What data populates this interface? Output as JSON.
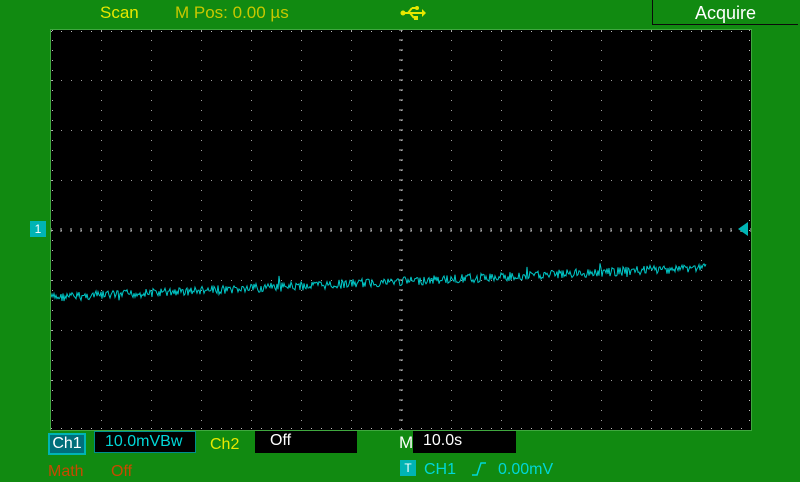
{
  "header": {
    "mode": "Scan",
    "m_pos": "M Pos: 0.00 µs",
    "usb_icon": "usb-icon",
    "menu_title": "Acquire"
  },
  "screen": {
    "grid_divisions": {
      "horizontal": 14,
      "vertical": 8
    },
    "ground_marker_label": "1",
    "trace_color": "#00c8c8",
    "trace": {
      "start_division_from_top": 5.35,
      "end_division_from_top": 4.75,
      "end_division_from_left": 13.1
    }
  },
  "channels": {
    "ch1": {
      "label": "Ch1",
      "scale": "10.0mVBw",
      "color": "#00b4b4"
    },
    "ch2": {
      "label": "Ch2",
      "scale": "Off",
      "color": "#e8e800"
    },
    "math": {
      "label": "Math",
      "scale": "Off",
      "color": "#c84a00"
    }
  },
  "timebase": {
    "label": "M",
    "value": "10.0s"
  },
  "trigger": {
    "icon_label": "T",
    "source": "CH1",
    "edge": "rising",
    "level": "0.00mV"
  }
}
